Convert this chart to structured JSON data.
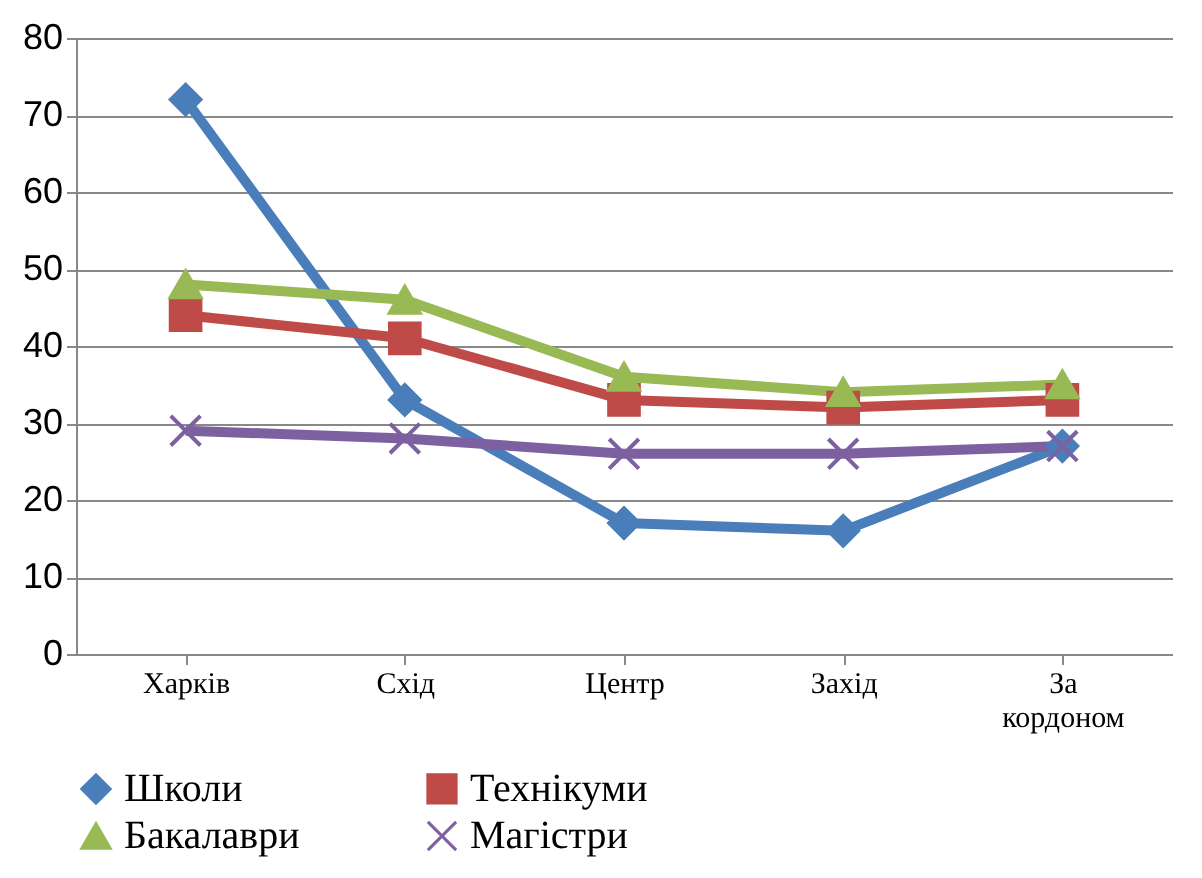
{
  "chart_data": {
    "type": "line",
    "categories": [
      "Харків",
      "Схід",
      "Центр",
      "Захід",
      "За кордоном"
    ],
    "series": [
      {
        "name": "Школи",
        "color": "#4a7ebb",
        "marker": "diamond",
        "values": [
          72,
          33,
          17,
          16,
          27
        ]
      },
      {
        "name": "Технікуми",
        "color": "#be4b48",
        "marker": "square",
        "values": [
          44,
          41,
          33,
          32,
          33
        ]
      },
      {
        "name": "Бакалаври",
        "color": "#98b954",
        "marker": "triangle",
        "values": [
          48,
          46,
          36,
          34,
          35
        ]
      },
      {
        "name": "Магістри",
        "color": "#7d60a0",
        "marker": "cross",
        "values": [
          29,
          28,
          26,
          26,
          27
        ]
      }
    ],
    "ylim": [
      0,
      80
    ],
    "yticks": [
      0,
      10,
      20,
      30,
      40,
      50,
      60,
      70,
      80
    ],
    "grid": "y",
    "legend": "bottom",
    "line_style": "solid"
  }
}
